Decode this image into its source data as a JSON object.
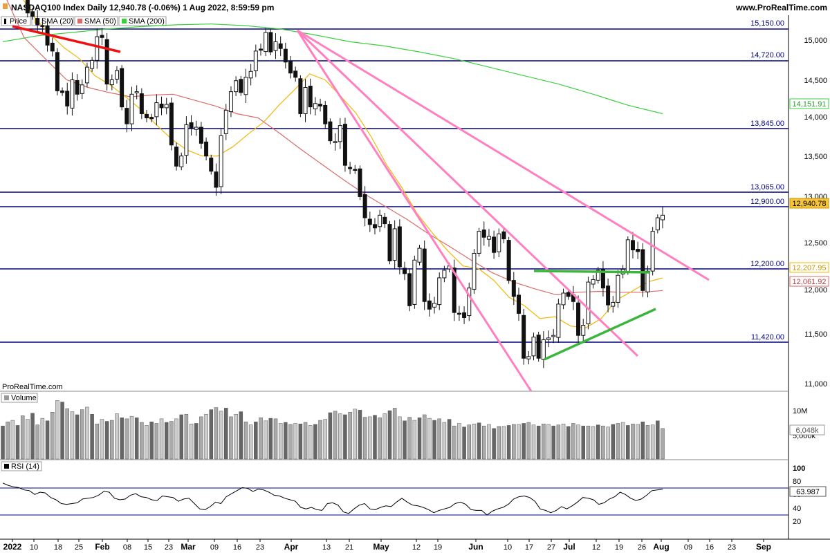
{
  "header": {
    "title": "NASDAQ100 Index Daily 12,940.78 (-0.06%) 1 Aug 2022, 8:59:59 pm",
    "site": "www.ProRealTime.com",
    "watermark": "ProRealTime.com"
  },
  "legend": {
    "price": "Price",
    "sma20": "SMA (20)",
    "sma50": "SMA (50)",
    "sma200": "SMA (200)",
    "volume": "Volume",
    "rsi": "RSI (14)"
  },
  "colors": {
    "level": "#000080",
    "sma20": "#f2b705",
    "sma50": "#d96b6b",
    "sma200": "#3ccf3c",
    "pink": "#ff7fc0",
    "green": "#3cb53c",
    "red": "#ee1111",
    "up": "#ffffff",
    "down": "#111111"
  },
  "price_axis_labels": [
    "15,000",
    "14,500",
    "14,000",
    "13,500",
    "13,000",
    "12,500",
    "12,000",
    "11,500",
    "11,000"
  ],
  "level_labels": [
    "15,150.00",
    "14,720.00",
    "13,845.00",
    "13,065.00",
    "12,900.00",
    "12,200.00",
    "11,420.00"
  ],
  "tags": {
    "last_price": "12,940.78",
    "sma200": "14,151.91",
    "sma20": "12,207.95",
    "sma50": "12,061.92"
  },
  "volume_axis": {
    "tick_10m": "10M",
    "tick_5m": "5,000k",
    "last_volume": "6,048k"
  },
  "rsi_axis": {
    "ticks": [
      "100",
      "80",
      "60",
      "40",
      "20"
    ],
    "last_value": "63.987"
  },
  "date_axis": [
    {
      "label": "2022",
      "bold": true
    },
    {
      "label": "10",
      "bold": false
    },
    {
      "label": "18",
      "bold": false
    },
    {
      "label": "25",
      "bold": false
    },
    {
      "label": "Feb",
      "bold": true
    },
    {
      "label": "08",
      "bold": false
    },
    {
      "label": "15",
      "bold": false
    },
    {
      "label": "23",
      "bold": false
    },
    {
      "label": "Mar",
      "bold": true
    },
    {
      "label": "09",
      "bold": false
    },
    {
      "label": "16",
      "bold": false
    },
    {
      "label": "23",
      "bold": false
    },
    {
      "label": "Apr",
      "bold": true
    },
    {
      "label": "13",
      "bold": false
    },
    {
      "label": "21",
      "bold": false
    },
    {
      "label": "May",
      "bold": true
    },
    {
      "label": "12",
      "bold": false
    },
    {
      "label": "19",
      "bold": false
    },
    {
      "label": "Jun",
      "bold": true
    },
    {
      "label": "10",
      "bold": false
    },
    {
      "label": "17",
      "bold": false
    },
    {
      "label": "27",
      "bold": false
    },
    {
      "label": "Jul",
      "bold": true
    },
    {
      "label": "12",
      "bold": false
    },
    {
      "label": "19",
      "bold": false
    },
    {
      "label": "26",
      "bold": false
    },
    {
      "label": "Aug",
      "bold": true
    },
    {
      "label": "09",
      "bold": false
    },
    {
      "label": "16",
      "bold": false
    },
    {
      "label": "23",
      "bold": false
    },
    {
      "label": "Sep",
      "bold": true
    }
  ],
  "chart_data": {
    "type": "candlestick",
    "title": "NASDAQ100 Index Daily",
    "price_range": [
      10870,
      15330
    ],
    "horizontal_levels": [
      15150,
      14720,
      13845,
      13065,
      12900,
      12200,
      11420
    ],
    "closes": [
      15990,
      15760,
      15600,
      15690,
      15630,
      15340,
      15300,
      15200,
      15180,
      14960,
      14890,
      14420,
      14400,
      14240,
      14550,
      14380,
      14490,
      14700,
      14780,
      15060,
      15050,
      14500,
      14550,
      14660,
      14230,
      14030,
      14380,
      14410,
      14150,
      14100,
      14090,
      14280,
      14220,
      14260,
      13780,
      13530,
      13650,
      14020,
      13980,
      13990,
      13800,
      13650,
      13470,
      13280,
      13890,
      14190,
      14410,
      14540,
      14400,
      14580,
      14650,
      14890,
      14900,
      15110,
      14880,
      15000,
      14920,
      14760,
      14630,
      14580,
      14150,
      14460,
      14230,
      14270,
      14240,
      14030,
      13830,
      13820,
      14010,
      13540,
      13500,
      13490,
      13170,
      12920,
      12840,
      12800,
      12950,
      12850,
      12410,
      12790,
      12340,
      12260,
      11880,
      12420,
      12560,
      11930,
      11840,
      11910,
      12210,
      12300,
      12350,
      11800,
      11790,
      11740,
      12090,
      12500,
      12760,
      12690,
      12700,
      12510,
      12730,
      12670,
      12180,
      11990,
      11790,
      11260,
      11280,
      11510,
      11260,
      11480,
      11500,
      11530,
      11900,
      12030,
      11990,
      11930,
      11530,
      11650,
      12160,
      12190,
      12300,
      12090,
      11890,
      11920,
      12240,
      12310,
      12660,
      12540,
      12520,
      12060,
      12290,
      12760,
      12920,
      12950
    ],
    "sma20_values": [
      15900,
      15600,
      15300,
      15100,
      14930,
      14800,
      14600,
      14490,
      14350,
      14200,
      14020,
      13850,
      13720,
      13650,
      13650,
      13760,
      13910,
      14050,
      14250,
      14430,
      14620,
      14550,
      14360,
      14160,
      13880,
      13550,
      13280,
      12970,
      12740,
      12530,
      12350,
      12320,
      12180,
      11980,
      11880,
      11730,
      11750,
      11640,
      11620,
      11730,
      11950,
      12050,
      12160,
      12210
    ],
    "sma50_values": [
      15600,
      15050,
      14800,
      14550,
      14460,
      14400,
      14350,
      14370,
      14380,
      14310,
      14240,
      14150,
      14100,
      13920,
      13730,
      13550,
      13370,
      13200,
      13050,
      12900,
      12730,
      12580,
      12420,
      12270,
      12160,
      12080,
      12010,
      12040,
      12050,
      12040,
      12040,
      12060
    ],
    "sma200_values": [
      15000,
      15070,
      15110,
      15150,
      15180,
      15200,
      15210,
      15190,
      15150,
      15080,
      15000,
      14950,
      14880,
      14800,
      14700,
      14600,
      14500,
      14380,
      14250,
      14150
    ],
    "volume": [
      6.5,
      7.3,
      7.6,
      6.6,
      8.5,
      7.8,
      9.0,
      6.7,
      8.0,
      7.5,
      9.2,
      11.5,
      11.2,
      9.9,
      9.3,
      8.7,
      9.7,
      10.2,
      8.8,
      6.9,
      7.8,
      7.4,
      7.6,
      8.9,
      8.1,
      7.9,
      8.4,
      8.1,
      7.2,
      6.6,
      7.3,
      7.0,
      7.9,
      7.2,
      7.4,
      7.9,
      8.7,
      8.8,
      6.9,
      7.0,
      8.3,
      8.8,
      9.7,
      10.1,
      9.4,
      10.0,
      8.3,
      8.8,
      9.3,
      7.3,
      6.7,
      7.3,
      8.1,
      7.5,
      8.0,
      7.9,
      7.0,
      7.2,
      6.8,
      7.0,
      6.9,
      7.2,
      6.6,
      6.8,
      7.6,
      7.8,
      9.1,
      9.4,
      8.9,
      8.7,
      9.2,
      9.8,
      9.6,
      8.2,
      8.3,
      8.6,
      8.1,
      8.9,
      9.5,
      10.0,
      8.3,
      7.5,
      8.2,
      7.6,
      8.1,
      8.7,
      8.0,
      7.6,
      7.9,
      7.2,
      7.8,
      6.5,
      7.0,
      6.3,
      6.7,
      6.9,
      7.1,
      6.5,
      6.8,
      6.0,
      6.4,
      6.4,
      6.6,
      6.8,
      6.8,
      7.0,
      7.2,
      6.7,
      6.5,
      6.9,
      6.8,
      6.5,
      6.7,
      6.9,
      6.4,
      7.0,
      6.7,
      6.5,
      6.5,
      6.4,
      6.7,
      6.5,
      6.3,
      6.8,
      7.0,
      7.2,
      6.6,
      6.9,
      6.8,
      7.3,
      6.6,
      6.7,
      7.5,
      6.0
    ],
    "rsi_values": [
      72,
      69,
      67,
      66,
      63,
      62,
      57,
      60,
      59,
      53,
      50,
      45,
      44,
      45,
      46,
      51,
      52,
      53,
      56,
      61,
      60,
      52,
      50,
      51,
      56,
      58,
      54,
      53,
      50,
      49,
      55,
      54,
      53,
      48,
      51,
      52,
      45,
      38,
      37,
      41,
      47,
      45,
      54,
      58,
      62,
      66,
      65,
      61,
      64,
      63,
      60,
      56,
      55,
      52,
      50,
      48,
      40,
      38,
      40,
      37,
      36,
      45,
      46,
      43,
      34,
      32,
      38,
      43,
      45,
      38,
      37,
      40,
      42,
      41,
      47,
      52,
      47,
      43,
      42,
      40,
      37,
      33,
      36,
      38,
      40,
      45,
      47,
      44,
      37,
      36,
      36,
      30,
      35,
      38,
      40,
      44,
      51,
      54,
      55,
      53,
      48,
      38,
      36,
      33,
      36,
      41,
      38,
      42,
      47,
      53,
      52,
      50,
      44,
      46,
      51,
      54,
      60,
      57,
      52,
      49,
      51,
      56,
      62,
      63,
      64
    ]
  }
}
